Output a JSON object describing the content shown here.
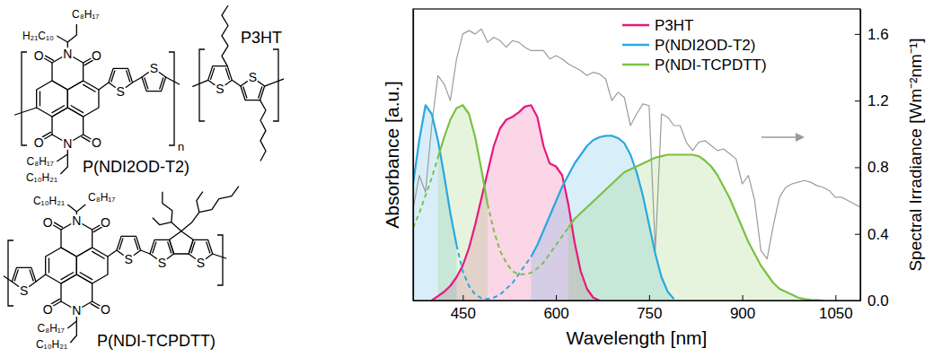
{
  "chart_data": {
    "type": "line",
    "xlabel": "Wavelength [nm]",
    "ylabel": "Absorbance [a.u.]",
    "y2label": "Spectral Irradiance [Wm⁻²nm⁻¹]",
    "legend": "top right",
    "xlim": [
      370,
      1090
    ],
    "ylim": [
      0,
      1
    ],
    "y2lim": [
      0,
      1.75
    ],
    "xticks": [
      450,
      600,
      750,
      900,
      1050
    ],
    "y2ticks": [
      {
        "value": 0,
        "label": "0.0"
      },
      0.4,
      0.8,
      1.2,
      1.6
    ],
    "x": [
      370,
      380,
      390,
      400,
      410,
      420,
      430,
      440,
      450,
      460,
      470,
      480,
      490,
      500,
      510,
      520,
      530,
      540,
      550,
      560,
      570,
      580,
      590,
      600,
      610,
      620,
      630,
      640,
      650,
      660,
      670,
      680,
      690,
      700,
      710,
      720,
      730,
      740,
      750,
      760,
      770,
      780,
      790,
      800,
      810,
      820,
      830,
      840,
      850,
      860,
      870,
      880,
      890,
      900,
      910,
      920,
      930,
      940,
      950,
      960,
      970,
      980,
      990,
      1000,
      1010,
      1020,
      1030,
      1040,
      1050,
      1060,
      1070,
      1080,
      1090
    ],
    "series": [
      {
        "name": "P3HT",
        "type": "area",
        "color": "#e6197b",
        "values": [
          null,
          null,
          null,
          0,
          0.015,
          0.03,
          0.05,
          0.08,
          0.12,
          0.18,
          0.26,
          0.35,
          0.44,
          0.53,
          0.59,
          0.62,
          0.63,
          0.645,
          0.665,
          0.67,
          0.63,
          0.53,
          0.47,
          0.46,
          0.43,
          0.33,
          0.2,
          0.1,
          0.04,
          0.01,
          0,
          null,
          null,
          null,
          null,
          null,
          null,
          null,
          null,
          null,
          null,
          null,
          null,
          null,
          null,
          null,
          null,
          null,
          null,
          null,
          null,
          null,
          null,
          null,
          null,
          null,
          null,
          null,
          null,
          null,
          null,
          null,
          null,
          null,
          null,
          null,
          null,
          null,
          null,
          null,
          null,
          null,
          null
        ]
      },
      {
        "name": "P(NDI2OD-T2)",
        "type": "area",
        "color": "#29a8e0",
        "values": [
          0.4,
          0.55,
          0.67,
          0.64,
          0.55,
          0.43,
          0.3,
          0.19,
          null,
          null,
          null,
          null,
          null,
          null,
          null,
          null,
          null,
          null,
          null,
          0.15,
          0.19,
          0.24,
          0.29,
          0.34,
          0.39,
          0.43,
          0.47,
          0.5,
          0.53,
          0.55,
          0.56,
          0.565,
          0.565,
          0.557,
          0.54,
          0.5,
          0.44,
          0.36,
          0.26,
          0.16,
          0.08,
          0.03,
          0.005,
          null,
          null,
          null,
          null,
          null,
          null,
          null,
          null,
          null,
          null,
          null,
          null,
          null,
          null,
          null,
          null,
          null,
          null,
          null,
          null,
          null,
          null,
          null,
          null,
          null,
          null,
          null,
          null,
          null,
          null
        ],
        "dashed_values": [
          null,
          null,
          null,
          null,
          null,
          null,
          null,
          0.19,
          0.1,
          0.05,
          0.02,
          0.008,
          0.005,
          0.01,
          0.02,
          0.04,
          0.06,
          0.09,
          0.12,
          0.15,
          null,
          null,
          null,
          null,
          null,
          null,
          null,
          null,
          null,
          null,
          null,
          null,
          null,
          null,
          null,
          null,
          null,
          null,
          null,
          null,
          null,
          null,
          null,
          null,
          null,
          null,
          null,
          null,
          null,
          null,
          null,
          null,
          null,
          null,
          null,
          null,
          null,
          null,
          null,
          null,
          null,
          null,
          null,
          null,
          null,
          null,
          null,
          null,
          null,
          null,
          null,
          null,
          null
        ]
      },
      {
        "name": "P(NDI-TCPDTT)",
        "type": "area",
        "color": "#7ac143",
        "values": [
          null,
          null,
          null,
          null,
          0.49,
          0.56,
          0.62,
          0.66,
          0.67,
          0.64,
          0.56,
          0.45,
          0.33,
          null,
          null,
          null,
          null,
          null,
          null,
          null,
          null,
          null,
          null,
          null,
          null,
          0.25,
          0.28,
          0.3,
          0.32,
          0.34,
          0.36,
          0.38,
          0.4,
          0.42,
          0.44,
          0.45,
          0.46,
          0.47,
          0.48,
          0.49,
          0.495,
          0.5,
          0.5,
          0.5,
          0.5,
          0.5,
          0.495,
          0.48,
          0.46,
          0.43,
          0.39,
          0.35,
          0.3,
          0.25,
          0.2,
          0.16,
          0.12,
          0.09,
          0.06,
          0.04,
          0.03,
          0.02,
          0.01,
          0.005,
          0.002,
          0.001,
          0,
          null,
          null,
          null,
          null,
          null,
          null
        ],
        "dashed_values": [
          0.25,
          0.3,
          0.36,
          0.42,
          0.49,
          null,
          null,
          null,
          null,
          null,
          null,
          null,
          0.33,
          0.24,
          0.17,
          0.13,
          0.1,
          0.09,
          0.09,
          0.095,
          0.11,
          0.13,
          0.16,
          0.19,
          0.22,
          0.25,
          null,
          null,
          null,
          null,
          null,
          null,
          null,
          null,
          null,
          null,
          null,
          null,
          null,
          null,
          null,
          null,
          null,
          null,
          null,
          null,
          null,
          null,
          null,
          null,
          null,
          null,
          null,
          null,
          null,
          null,
          null,
          null,
          null,
          null,
          null,
          null,
          null,
          null,
          null,
          null,
          null,
          null,
          null,
          null,
          null,
          null,
          null
        ]
      },
      {
        "color": "#9b9b9b",
        "axis": "y2",
        "values": [
          0.55,
          0.75,
          0.65,
          1.05,
          1.35,
          1.3,
          1.2,
          1.45,
          1.6,
          1.62,
          1.6,
          1.63,
          1.55,
          1.58,
          1.56,
          1.52,
          1.56,
          1.55,
          1.52,
          1.5,
          1.5,
          1.5,
          1.45,
          1.47,
          1.45,
          1.42,
          1.4,
          1.38,
          1.35,
          1.37,
          1.36,
          1.33,
          1.2,
          1.25,
          1.22,
          1.05,
          1.12,
          1.18,
          1.17,
          0.3,
          1.12,
          1.1,
          1.05,
          1.05,
          0.95,
          0.9,
          0.95,
          0.96,
          0.93,
          0.9,
          0.91,
          0.88,
          0.85,
          0.7,
          0.75,
          0.6,
          0.3,
          0.25,
          0.45,
          0.62,
          0.68,
          0.7,
          0.71,
          0.72,
          0.71,
          0.69,
          0.68,
          0.66,
          0.62,
          0.62,
          0.6,
          0.58,
          0.56
        ]
      }
    ]
  },
  "structures": [
    {
      "name": "P(NDI2OD-T2)",
      "atoms": [
        "O",
        "O",
        "N",
        "O",
        "O",
        "N",
        "S",
        "S"
      ],
      "chains": [
        "C₈H₁₇",
        "H₂₁C₁₀",
        "C₈H₁₇",
        "C₁₀H₂₁"
      ],
      "repeat": "n"
    },
    {
      "name": "P3HT",
      "atoms": [
        "S",
        "S"
      ]
    },
    {
      "name": "P(NDI-TCPDTT)",
      "atoms": [
        "O",
        "O",
        "N",
        "O",
        "O",
        "N",
        "S",
        "S",
        "S",
        "S"
      ],
      "chains": [
        "C₈H₁₇",
        "C₁₀H₂₁",
        "C₈H₁₇",
        "C₁₀H₂₁"
      ]
    }
  ]
}
